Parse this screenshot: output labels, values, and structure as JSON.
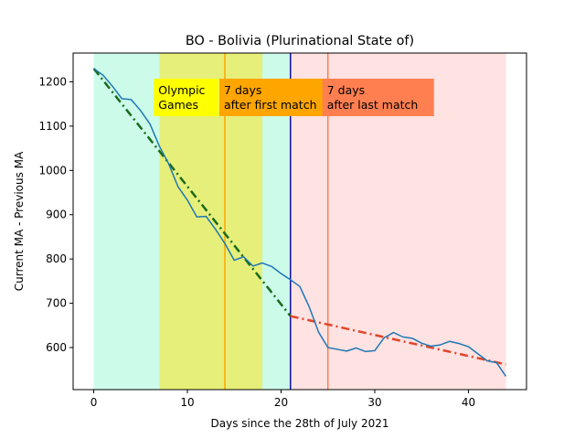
{
  "chart_data": {
    "type": "line",
    "title": "BO - Bolivia (Plurinational State of)",
    "xlabel": "Days since the 28th of July 2021",
    "ylabel": "Current MA - Previous MA",
    "xlim": [
      -2.2,
      46.2
    ],
    "ylim": [
      1500,
      1265
    ],
    "ylim_note": "",
    "x_ticks": [
      0,
      10,
      20,
      30,
      40
    ],
    "y_ticks": [
      600,
      700,
      800,
      900,
      1000,
      1100,
      1200
    ],
    "grid": false,
    "series": [
      {
        "name": "",
        "color": "#1f77b4",
        "x": [
          0,
          1,
          2,
          3,
          4,
          5,
          6,
          7,
          8,
          9,
          10,
          11,
          12,
          13,
          14,
          15,
          16,
          17,
          18,
          19,
          20,
          21,
          22,
          23,
          24,
          25,
          26,
          27,
          28,
          29,
          30,
          31,
          32,
          33,
          34,
          35,
          36,
          37,
          38,
          39,
          40,
          41,
          42,
          43,
          44
        ],
        "y": [
          1230,
          1215,
          1190,
          1162,
          1160,
          1135,
          1105,
          1055,
          1015,
          963,
          933,
          895,
          896,
          867,
          835,
          797,
          805,
          784,
          791,
          783,
          767,
          753,
          738,
          692,
          635,
          600,
          596,
          592,
          599,
          591,
          593,
          622,
          634,
          624,
          621,
          610,
          603,
          606,
          614,
          609,
          602,
          586,
          570,
          566,
          535
        ]
      }
    ],
    "trend_lines": [
      {
        "name": "",
        "color": "#1a6b1a",
        "x": [
          0,
          21
        ],
        "y": [
          1230,
          671
        ]
      },
      {
        "name": "",
        "color": "#e0452a",
        "x": [
          21,
          44
        ],
        "y": [
          671,
          562
        ]
      }
    ],
    "shaded_regions": [
      {
        "x": [
          0,
          7
        ],
        "color": "#ccfbea"
      },
      {
        "x": [
          7,
          18
        ],
        "color": "#e6ef7a"
      },
      {
        "x": [
          18,
          21
        ],
        "color": "#ccfbea"
      },
      {
        "x": [
          21,
          44
        ],
        "color": "#ffe2e2"
      }
    ],
    "vertical_lines": [
      {
        "x": 14,
        "color": "#ffa500"
      },
      {
        "x": 21,
        "color": "#1010b0"
      },
      {
        "x": 25,
        "color": "#ff7f50"
      }
    ],
    "annotations": [
      {
        "lines": [
          "Olympic",
          "Games"
        ],
        "x": 7,
        "y": 1168,
        "bg": "#ffff00"
      },
      {
        "lines": [
          "7 days",
          "after first match"
        ],
        "x": 14,
        "y": 1168,
        "bg": "#ffa500"
      },
      {
        "lines": [
          "7 days",
          "after last match"
        ],
        "x": 25,
        "y": 1168,
        "bg": "#ff7f50"
      }
    ]
  }
}
